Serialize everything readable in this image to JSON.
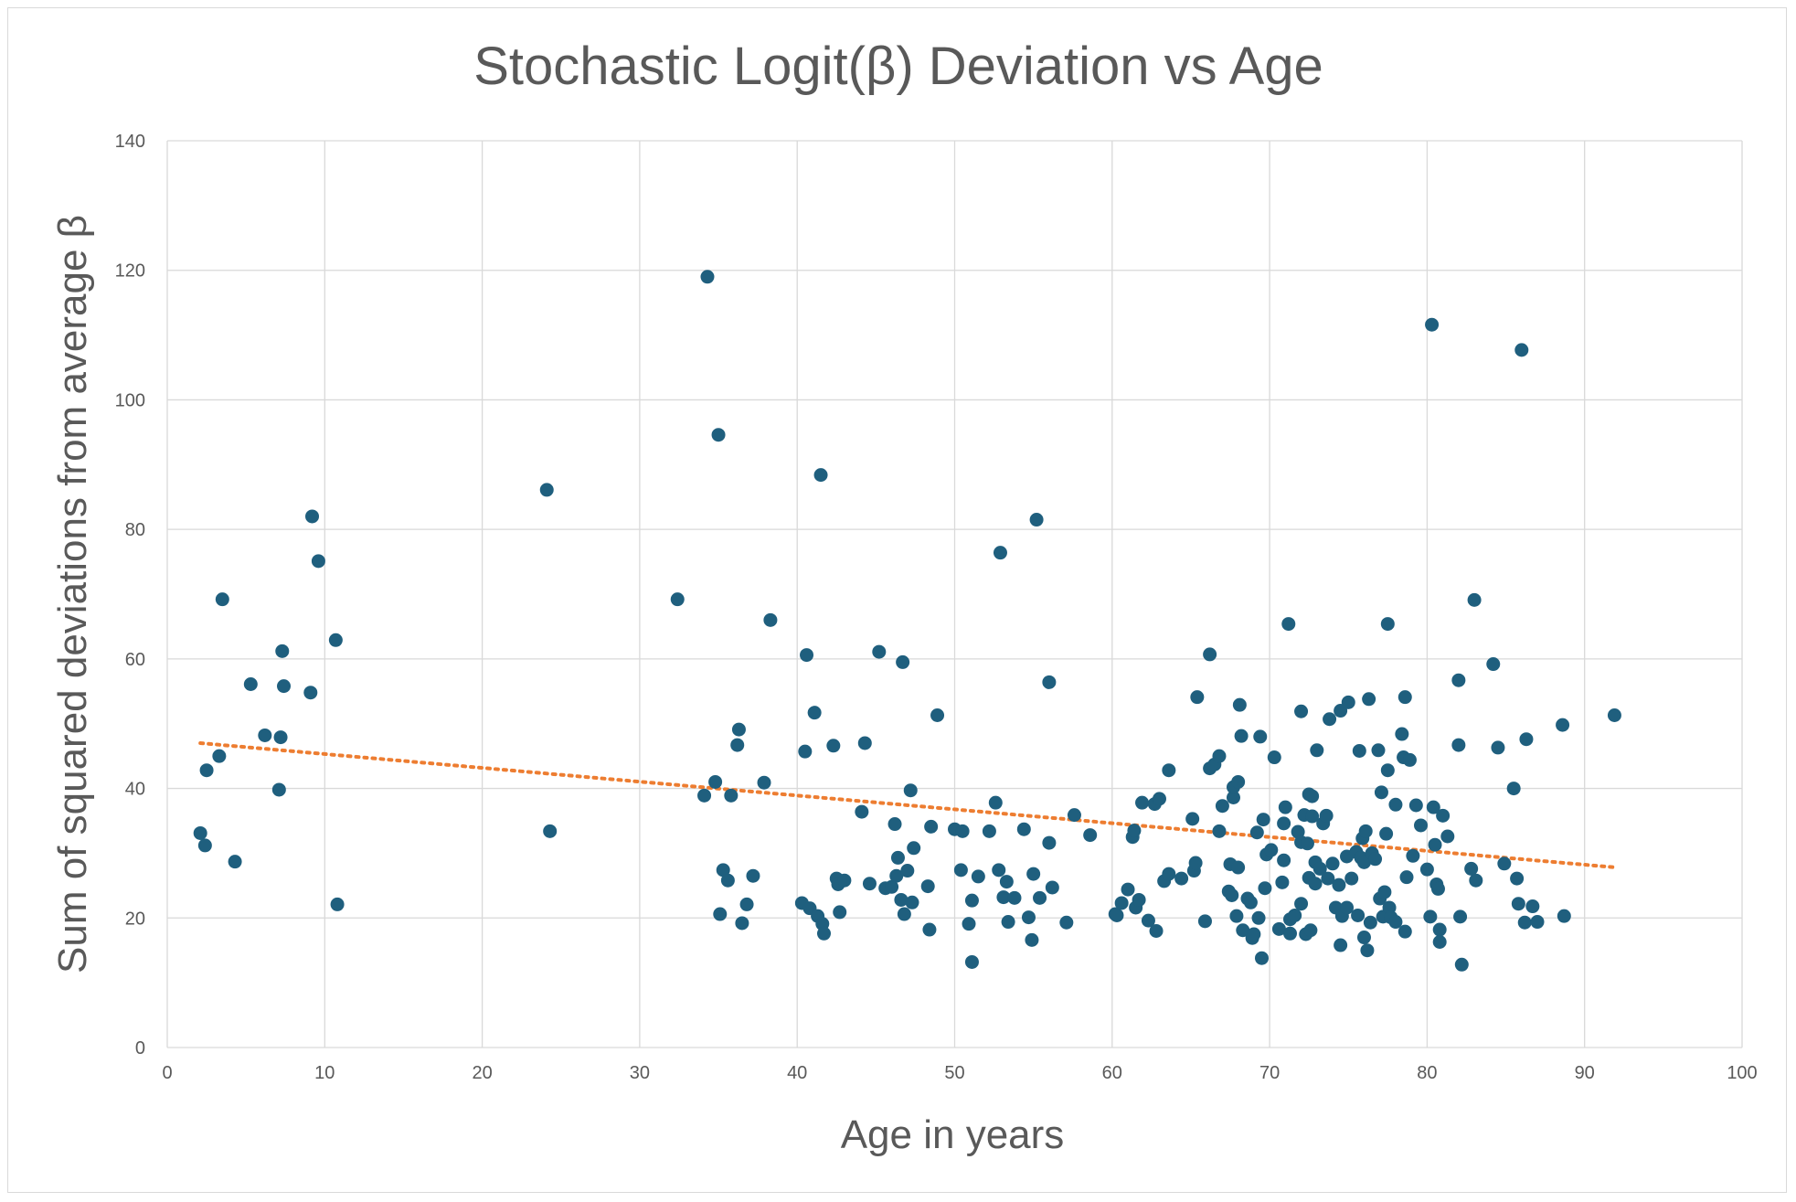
{
  "chart_data": {
    "type": "scatter",
    "title": "Stochastic Logit(β) Deviation vs Age",
    "xlabel": "Age in years",
    "ylabel": "Sum of squared deviations from average β",
    "xlim": [
      0,
      100
    ],
    "ylim": [
      0,
      140
    ],
    "x_ticks": [
      0,
      10,
      20,
      30,
      40,
      50,
      60,
      70,
      80,
      90,
      100
    ],
    "y_ticks": [
      0,
      20,
      40,
      60,
      80,
      100,
      120,
      140
    ],
    "grid": true,
    "legend": "none",
    "colors": {
      "points": "#1f5f7e",
      "trendline": "#ed7d31",
      "grid": "#d9d9d9",
      "text": "#595959"
    },
    "trendline": {
      "type": "linear",
      "style": "dotted",
      "x": [
        2.1,
        92
      ],
      "y": [
        47,
        27.8
      ]
    },
    "points": [
      [
        2.1,
        33.1
      ],
      [
        2.4,
        31.2
      ],
      [
        2.5,
        42.8
      ],
      [
        3.3,
        45
      ],
      [
        3.5,
        69.2
      ],
      [
        4.3,
        28.7
      ],
      [
        5.3,
        56.1
      ],
      [
        6.2,
        48.2
      ],
      [
        7.1,
        39.8
      ],
      [
        7.2,
        47.9
      ],
      [
        7.3,
        61.2
      ],
      [
        7.4,
        55.8
      ],
      [
        9.1,
        54.8
      ],
      [
        9.2,
        82
      ],
      [
        9.6,
        75.1
      ],
      [
        10.7,
        62.9
      ],
      [
        10.8,
        22.1
      ],
      [
        24.1,
        86.1
      ],
      [
        24.3,
        33.4
      ],
      [
        32.4,
        69.2
      ],
      [
        34.1,
        38.9
      ],
      [
        34.3,
        119
      ],
      [
        34.8,
        41
      ],
      [
        35,
        94.6
      ],
      [
        35.1,
        20.6
      ],
      [
        35.3,
        27.4
      ],
      [
        35.6,
        25.8
      ],
      [
        35.8,
        38.9
      ],
      [
        36.2,
        46.7
      ],
      [
        36.3,
        49.1
      ],
      [
        36.5,
        19.2
      ],
      [
        36.8,
        22.1
      ],
      [
        37.2,
        26.5
      ],
      [
        37.9,
        40.9
      ],
      [
        38.3,
        66
      ],
      [
        40.3,
        22.3
      ],
      [
        40.5,
        45.7
      ],
      [
        40.6,
        60.6
      ],
      [
        40.8,
        21.5
      ],
      [
        41.1,
        51.7
      ],
      [
        41.3,
        20.3
      ],
      [
        41.5,
        88.4
      ],
      [
        41.6,
        19.1
      ],
      [
        41.7,
        17.6
      ],
      [
        42.3,
        46.6
      ],
      [
        42.5,
        26.1
      ],
      [
        42.6,
        25.2
      ],
      [
        42.7,
        20.9
      ],
      [
        43,
        25.8
      ],
      [
        44.1,
        36.4
      ],
      [
        44.3,
        47
      ],
      [
        44.6,
        25.3
      ],
      [
        45.2,
        61.1
      ],
      [
        45.6,
        24.6
      ],
      [
        46,
        24.8
      ],
      [
        46.2,
        34.5
      ],
      [
        46.3,
        26.5
      ],
      [
        46.4,
        29.3
      ],
      [
        46.6,
        22.8
      ],
      [
        46.7,
        59.5
      ],
      [
        46.8,
        20.6
      ],
      [
        47,
        27.3
      ],
      [
        47.2,
        39.7
      ],
      [
        47.3,
        22.4
      ],
      [
        47.4,
        30.8
      ],
      [
        48.3,
        24.9
      ],
      [
        48.4,
        18.2
      ],
      [
        48.5,
        34.1
      ],
      [
        48.9,
        51.3
      ],
      [
        50,
        33.7
      ],
      [
        50.4,
        27.4
      ],
      [
        50.5,
        33.4
      ],
      [
        50.9,
        19.1
      ],
      [
        51.1,
        22.7
      ],
      [
        51.1,
        13.2
      ],
      [
        51.5,
        26.4
      ],
      [
        52.2,
        33.4
      ],
      [
        52.6,
        37.8
      ],
      [
        52.8,
        27.4
      ],
      [
        52.9,
        76.4
      ],
      [
        53.1,
        23.2
      ],
      [
        53.3,
        25.6
      ],
      [
        53.4,
        19.4
      ],
      [
        53.8,
        23.1
      ],
      [
        54.4,
        33.7
      ],
      [
        54.7,
        20.1
      ],
      [
        54.9,
        16.6
      ],
      [
        55,
        26.8
      ],
      [
        55.2,
        81.5
      ],
      [
        55.4,
        23.1
      ],
      [
        56,
        31.6
      ],
      [
        56,
        56.4
      ],
      [
        56.2,
        24.7
      ],
      [
        57.1,
        19.3
      ],
      [
        57.6,
        35.9
      ],
      [
        58.6,
        32.8
      ],
      [
        60.2,
        20.6
      ],
      [
        60.3,
        20.4
      ],
      [
        60.6,
        22.3
      ],
      [
        61,
        24.4
      ],
      [
        61.3,
        32.5
      ],
      [
        61.4,
        33.5
      ],
      [
        61.5,
        21.6
      ],
      [
        61.7,
        22.8
      ],
      [
        61.9,
        37.8
      ],
      [
        62.3,
        19.6
      ],
      [
        62.7,
        37.6
      ],
      [
        62.8,
        18
      ],
      [
        63,
        38.4
      ],
      [
        63.3,
        25.7
      ],
      [
        63.6,
        42.8
      ],
      [
        63.6,
        26.8
      ],
      [
        64.4,
        26.1
      ],
      [
        65.1,
        35.3
      ],
      [
        65.2,
        27.3
      ],
      [
        65.3,
        28.5
      ],
      [
        65.4,
        54.1
      ],
      [
        65.9,
        19.5
      ],
      [
        66.2,
        43.1
      ],
      [
        66.2,
        60.7
      ],
      [
        66.5,
        43.7
      ],
      [
        66.8,
        33.4
      ],
      [
        66.8,
        45
      ],
      [
        67,
        37.3
      ],
      [
        67.4,
        24.1
      ],
      [
        67.5,
        28.3
      ],
      [
        67.6,
        23.5
      ],
      [
        67.7,
        38.6
      ],
      [
        67.7,
        40.2
      ],
      [
        67.9,
        20.3
      ],
      [
        68,
        27.8
      ],
      [
        68,
        41
      ],
      [
        68.1,
        52.9
      ],
      [
        68.2,
        48.1
      ],
      [
        68.3,
        18.1
      ],
      [
        68.6,
        23
      ],
      [
        68.8,
        22.4
      ],
      [
        68.9,
        16.9
      ],
      [
        69,
        17.5
      ],
      [
        69.2,
        33.2
      ],
      [
        69.3,
        20
      ],
      [
        69.4,
        48
      ],
      [
        69.5,
        13.8
      ],
      [
        69.6,
        35.2
      ],
      [
        69.7,
        24.6
      ],
      [
        69.8,
        29.8
      ],
      [
        70.1,
        30.5
      ],
      [
        70.3,
        44.8
      ],
      [
        70.6,
        18.3
      ],
      [
        70.8,
        25.5
      ],
      [
        70.9,
        28.9
      ],
      [
        70.9,
        34.6
      ],
      [
        71,
        37.1
      ],
      [
        71.2,
        65.4
      ],
      [
        71.3,
        17.6
      ],
      [
        71.3,
        19.8
      ],
      [
        71.6,
        20.4
      ],
      [
        71.8,
        33.3
      ],
      [
        72,
        22.2
      ],
      [
        72,
        51.9
      ],
      [
        72,
        31.7
      ],
      [
        72.2,
        35.9
      ],
      [
        72.3,
        17.5
      ],
      [
        72.4,
        31.5
      ],
      [
        72.5,
        26.2
      ],
      [
        72.5,
        39.1
      ],
      [
        72.6,
        18.1
      ],
      [
        72.7,
        35.7
      ],
      [
        72.7,
        38.8
      ],
      [
        72.9,
        25.3
      ],
      [
        72.9,
        28.6
      ],
      [
        73,
        45.9
      ],
      [
        73.2,
        27.6
      ],
      [
        73.4,
        34.6
      ],
      [
        73.6,
        35.8
      ],
      [
        73.7,
        26.1
      ],
      [
        73.8,
        50.7
      ],
      [
        74,
        28.4
      ],
      [
        74.2,
        21.6
      ],
      [
        74.4,
        25.1
      ],
      [
        74.5,
        15.8
      ],
      [
        74.5,
        52
      ],
      [
        74.6,
        20.3
      ],
      [
        74.9,
        29.5
      ],
      [
        74.9,
        21.6
      ],
      [
        75,
        53.3
      ],
      [
        75.2,
        26.1
      ],
      [
        75.5,
        30.2
      ],
      [
        75.6,
        20.4
      ],
      [
        75.7,
        45.8
      ],
      [
        75.8,
        29.3
      ],
      [
        75.9,
        32.3
      ],
      [
        76,
        28.6
      ],
      [
        76,
        17
      ],
      [
        76.1,
        33.4
      ],
      [
        76.2,
        15
      ],
      [
        76.3,
        53.8
      ],
      [
        76.4,
        19.3
      ],
      [
        76.5,
        30
      ],
      [
        76.7,
        29.1
      ],
      [
        76.9,
        45.9
      ],
      [
        77,
        23
      ],
      [
        77.1,
        39.4
      ],
      [
        77.2,
        20.2
      ],
      [
        77.3,
        24
      ],
      [
        77.4,
        33
      ],
      [
        77.5,
        42.8
      ],
      [
        77.5,
        65.4
      ],
      [
        77.6,
        21.6
      ],
      [
        77.7,
        20.1
      ],
      [
        78,
        19.4
      ],
      [
        78,
        37.5
      ],
      [
        78.4,
        48.4
      ],
      [
        78.5,
        44.8
      ],
      [
        78.6,
        17.9
      ],
      [
        78.6,
        54.1
      ],
      [
        78.7,
        26.3
      ],
      [
        78.9,
        44.4
      ],
      [
        79.1,
        29.6
      ],
      [
        79.3,
        37.4
      ],
      [
        79.6,
        34.3
      ],
      [
        80,
        27.5
      ],
      [
        80.2,
        20.2
      ],
      [
        80.3,
        111.6
      ],
      [
        80.4,
        37.1
      ],
      [
        80.5,
        31.3
      ],
      [
        80.6,
        25.2
      ],
      [
        80.7,
        24.5
      ],
      [
        80.8,
        18.2
      ],
      [
        80.8,
        16.3
      ],
      [
        81,
        35.8
      ],
      [
        81.3,
        32.6
      ],
      [
        82,
        56.7
      ],
      [
        82,
        46.7
      ],
      [
        82.1,
        20.2
      ],
      [
        82.2,
        12.8
      ],
      [
        82.8,
        27.6
      ],
      [
        83,
        69.1
      ],
      [
        83.1,
        25.8
      ],
      [
        84.2,
        59.2
      ],
      [
        84.5,
        46.3
      ],
      [
        84.9,
        28.4
      ],
      [
        85.5,
        40
      ],
      [
        85.7,
        26.1
      ],
      [
        85.8,
        22.2
      ],
      [
        86,
        107.7
      ],
      [
        86.2,
        19.3
      ],
      [
        86.3,
        47.6
      ],
      [
        86.7,
        21.8
      ],
      [
        87,
        19.4
      ],
      [
        88.6,
        49.8
      ],
      [
        88.7,
        20.3
      ],
      [
        91.9,
        51.3
      ]
    ]
  }
}
